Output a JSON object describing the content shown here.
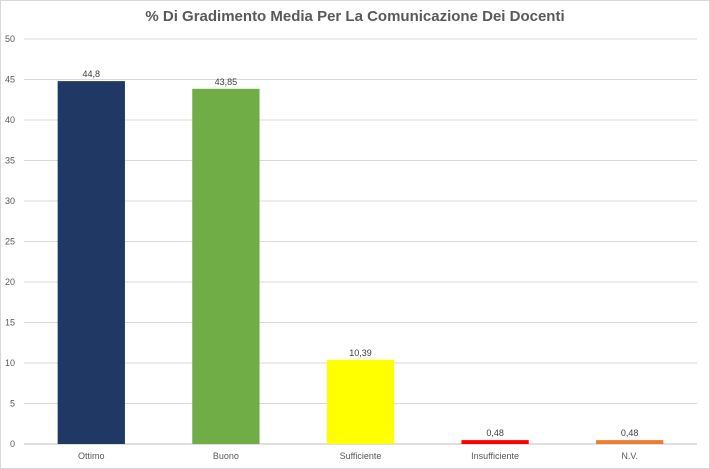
{
  "chart_data": {
    "type": "bar",
    "title": "% Di Gradimento Media Per La Comunicazione Dei Docenti",
    "xlabel": "",
    "ylabel": "",
    "categories": [
      "Ottimo",
      "Buono",
      "Sufficiente",
      "Insufficiente",
      "N.V."
    ],
    "values": [
      44.8,
      43.85,
      10.39,
      0.48,
      0.48
    ],
    "data_labels": [
      "44,8",
      "43,85",
      "10,39",
      "0,48",
      "0,48"
    ],
    "bar_colors": [
      "#1f3864",
      "#70ad47",
      "#ffff00",
      "#ff0000",
      "#ed7d31"
    ],
    "ylim": [
      0,
      50
    ],
    "y_ticks": [
      0,
      5,
      10,
      15,
      20,
      25,
      30,
      35,
      40,
      45,
      50
    ],
    "grid": true,
    "legend": "none"
  }
}
